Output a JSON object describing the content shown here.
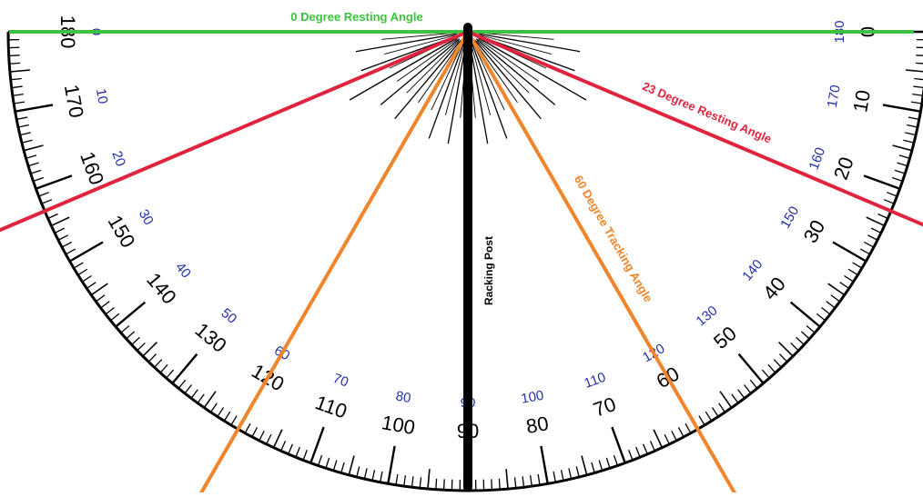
{
  "labels": {
    "zero": "0 Degree Resting Angle",
    "twentythree": "23 Degree Resting Angle",
    "sixty": "60 Degree Tracking Angle",
    "post": "Racking Post"
  },
  "scale": {
    "outer_black": [
      "0",
      "10",
      "20",
      "30",
      "40",
      "50",
      "60",
      "70",
      "80",
      "90",
      "100",
      "110",
      "120",
      "130",
      "140",
      "150",
      "160",
      "170",
      "180"
    ],
    "inner_blue": [
      "180",
      "170",
      "160",
      "150",
      "140",
      "130",
      "120",
      "110",
      "100",
      "90",
      "80",
      "70",
      "60",
      "50",
      "40",
      "30",
      "20",
      "10",
      "0"
    ]
  },
  "colors": {
    "green": "#3cc23f",
    "red": "#e0243d",
    "orange": "#f0852b",
    "blue": "#2430a8",
    "dark_red_tick": "#8b1a1a"
  }
}
